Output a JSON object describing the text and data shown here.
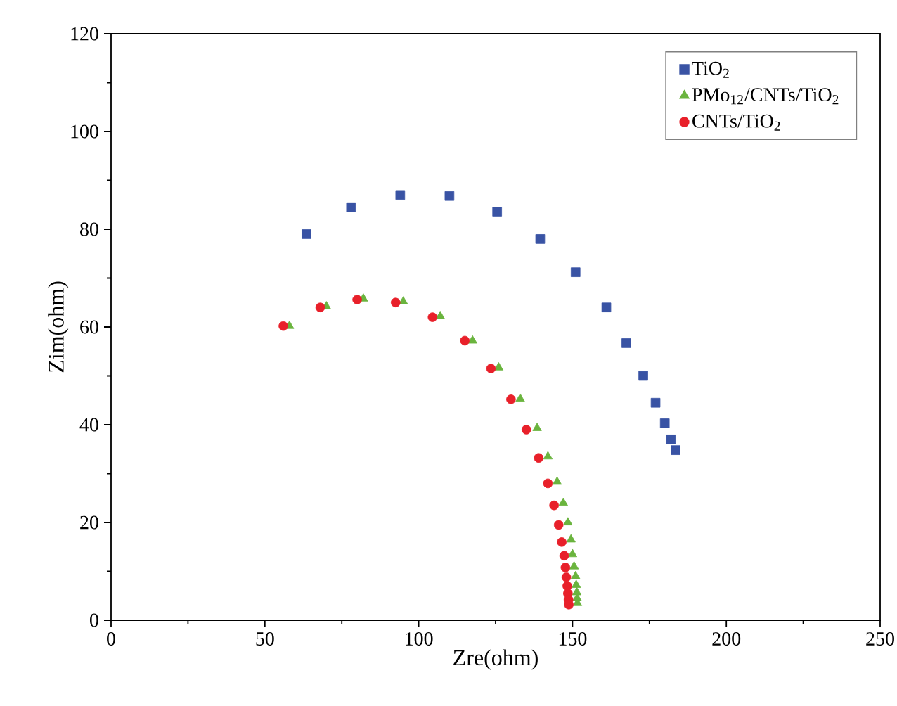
{
  "chart_data": {
    "type": "scatter",
    "xlabel": "Zre(ohm)",
    "ylabel": "Zim(ohm)",
    "xlim": [
      0,
      250
    ],
    "ylim": [
      0,
      120
    ],
    "xticks": [
      0,
      50,
      100,
      150,
      200,
      250
    ],
    "yticks": [
      0,
      20,
      40,
      60,
      80,
      100,
      120
    ],
    "grid": false,
    "legend": "top right",
    "series": [
      {
        "name": "TiO$_{2}$",
        "color": "#3953a4",
        "marker": "square",
        "x": [
          63.5,
          78,
          94,
          110,
          125.5,
          139.5,
          151,
          161,
          167.5,
          173,
          177,
          180,
          182,
          183.5
        ],
        "values": [
          79,
          84.5,
          87,
          86.8,
          83.6,
          78,
          71.2,
          64,
          56.7,
          50,
          44.5,
          40.3,
          37,
          34.8
        ]
      },
      {
        "name": "PMo$_{12}$/CNTs/TiO$_{2}$",
        "color": "#6ab43e",
        "marker": "triangle",
        "x": [
          58,
          70,
          82,
          95,
          107,
          117.5,
          126,
          133,
          138.5,
          142,
          145,
          147,
          148.5,
          149.5,
          150,
          150.5,
          151,
          151.2,
          151.4,
          151.5,
          151.6
        ],
        "values": [
          60.2,
          64.2,
          65.8,
          65.2,
          62.2,
          57.2,
          51.7,
          45.3,
          39.3,
          33.5,
          28.3,
          24,
          20,
          16.5,
          13.5,
          11,
          9,
          7.2,
          5.7,
          4.5,
          3.5
        ]
      },
      {
        "name": "CNTs/TiO$_{2}$",
        "color": "#e8202a",
        "marker": "circle",
        "x": [
          56,
          68,
          80,
          92.5,
          104.5,
          115,
          123.5,
          130,
          135,
          139,
          142,
          144,
          145.5,
          146.5,
          147.3,
          147.7,
          148,
          148.3,
          148.5,
          148.7,
          148.8
        ],
        "values": [
          60.2,
          64,
          65.6,
          65,
          62,
          57.2,
          51.5,
          45.2,
          39,
          33.2,
          28,
          23.5,
          19.5,
          16,
          13.2,
          10.8,
          8.8,
          7,
          5.5,
          4.2,
          3.2
        ]
      }
    ]
  }
}
